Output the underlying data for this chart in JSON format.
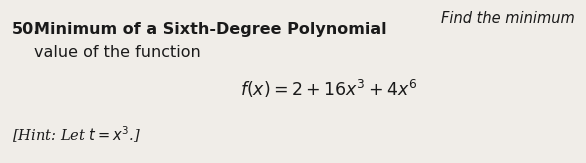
{
  "background_color": "#f0ede8",
  "number": "50.",
  "title_bold": "Minimum of a Sixth-Degree Polynomial",
  "find_text": "Find the minimum",
  "line2": "value of the function",
  "equation": "$f(x) = 2 + 16x^3 + 4x^6$",
  "hint": "[Hint: Let $t = x^3$.]",
  "fig_width": 5.86,
  "fig_height": 1.63,
  "dpi": 100,
  "text_color": "#1a1a1a"
}
